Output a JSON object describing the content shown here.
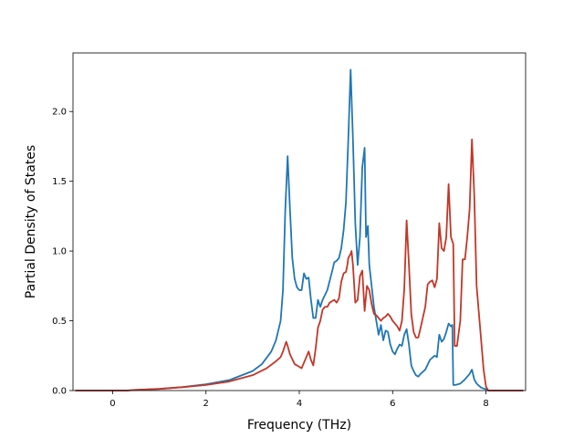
{
  "chart_data": {
    "type": "line",
    "xlabel": "Frequency (THz)",
    "ylabel": "Partial Density of States",
    "xlim": [
      -0.85,
      8.85
    ],
    "ylim": [
      0,
      2.42
    ],
    "x_ticks": [
      0,
      2,
      4,
      6,
      8
    ],
    "x_tick_labels": [
      "0",
      "2",
      "4",
      "6",
      "8"
    ],
    "y_ticks": [
      0.0,
      0.5,
      1.0,
      1.5,
      2.0
    ],
    "y_tick_labels": [
      "0.0",
      "0.5",
      "1.0",
      "1.5",
      "2.0"
    ],
    "grid": false,
    "series": [
      {
        "color": "#1f77b4",
        "points": [
          [
            -0.8,
            0
          ],
          [
            0,
            0
          ],
          [
            0.3,
            0
          ],
          [
            0.5,
            0.005
          ],
          [
            1.0,
            0.012
          ],
          [
            1.5,
            0.025
          ],
          [
            2.0,
            0.045
          ],
          [
            2.5,
            0.075
          ],
          [
            3.0,
            0.14
          ],
          [
            3.2,
            0.19
          ],
          [
            3.4,
            0.28
          ],
          [
            3.5,
            0.36
          ],
          [
            3.6,
            0.5
          ],
          [
            3.65,
            0.72
          ],
          [
            3.7,
            1.3
          ],
          [
            3.75,
            1.68
          ],
          [
            3.8,
            1.3
          ],
          [
            3.85,
            0.95
          ],
          [
            3.9,
            0.8
          ],
          [
            3.95,
            0.74
          ],
          [
            4.0,
            0.72
          ],
          [
            4.05,
            0.72
          ],
          [
            4.1,
            0.84
          ],
          [
            4.15,
            0.8
          ],
          [
            4.2,
            0.81
          ],
          [
            4.25,
            0.65
          ],
          [
            4.3,
            0.52
          ],
          [
            4.35,
            0.52
          ],
          [
            4.4,
            0.65
          ],
          [
            4.45,
            0.6
          ],
          [
            4.5,
            0.65
          ],
          [
            4.6,
            0.72
          ],
          [
            4.7,
            0.85
          ],
          [
            4.75,
            0.92
          ],
          [
            4.8,
            0.93
          ],
          [
            4.85,
            0.95
          ],
          [
            4.9,
            1.02
          ],
          [
            4.95,
            1.15
          ],
          [
            5.0,
            1.35
          ],
          [
            5.05,
            1.8
          ],
          [
            5.1,
            2.3
          ],
          [
            5.15,
            1.8
          ],
          [
            5.2,
            1.2
          ],
          [
            5.25,
            0.9
          ],
          [
            5.3,
            1.1
          ],
          [
            5.35,
            1.6
          ],
          [
            5.4,
            1.74
          ],
          [
            5.43,
            1.1
          ],
          [
            5.47,
            1.18
          ],
          [
            5.5,
            0.9
          ],
          [
            5.55,
            0.75
          ],
          [
            5.6,
            0.6
          ],
          [
            5.65,
            0.5
          ],
          [
            5.7,
            0.4
          ],
          [
            5.75,
            0.47
          ],
          [
            5.8,
            0.36
          ],
          [
            5.85,
            0.43
          ],
          [
            5.9,
            0.42
          ],
          [
            5.95,
            0.33
          ],
          [
            6.0,
            0.28
          ],
          [
            6.05,
            0.26
          ],
          [
            6.1,
            0.3
          ],
          [
            6.15,
            0.33
          ],
          [
            6.2,
            0.32
          ],
          [
            6.25,
            0.4
          ],
          [
            6.3,
            0.44
          ],
          [
            6.35,
            0.33
          ],
          [
            6.4,
            0.18
          ],
          [
            6.45,
            0.14
          ],
          [
            6.5,
            0.11
          ],
          [
            6.55,
            0.1
          ],
          [
            6.6,
            0.12
          ],
          [
            6.7,
            0.15
          ],
          [
            6.8,
            0.22
          ],
          [
            6.9,
            0.25
          ],
          [
            6.95,
            0.24
          ],
          [
            7.0,
            0.4
          ],
          [
            7.05,
            0.35
          ],
          [
            7.1,
            0.37
          ],
          [
            7.15,
            0.42
          ],
          [
            7.2,
            0.48
          ],
          [
            7.25,
            0.46
          ],
          [
            7.28,
            0.47
          ],
          [
            7.3,
            0.04
          ],
          [
            7.35,
            0.04
          ],
          [
            7.45,
            0.05
          ],
          [
            7.55,
            0.08
          ],
          [
            7.65,
            0.12
          ],
          [
            7.7,
            0.15
          ],
          [
            7.75,
            0.08
          ],
          [
            7.8,
            0.05
          ],
          [
            7.9,
            0.02
          ],
          [
            8.0,
            0.01
          ],
          [
            8.05,
            0
          ],
          [
            8.8,
            0
          ]
        ]
      },
      {
        "color": "#c23728",
        "points": [
          [
            -0.8,
            0
          ],
          [
            0,
            0
          ],
          [
            0.3,
            0
          ],
          [
            0.5,
            0.005
          ],
          [
            1.0,
            0.012
          ],
          [
            1.5,
            0.024
          ],
          [
            2.0,
            0.04
          ],
          [
            2.5,
            0.065
          ],
          [
            3.0,
            0.11
          ],
          [
            3.3,
            0.16
          ],
          [
            3.5,
            0.21
          ],
          [
            3.6,
            0.24
          ],
          [
            3.65,
            0.28
          ],
          [
            3.7,
            0.33
          ],
          [
            3.72,
            0.35
          ],
          [
            3.75,
            0.32
          ],
          [
            3.8,
            0.26
          ],
          [
            3.9,
            0.19
          ],
          [
            4.0,
            0.17
          ],
          [
            4.05,
            0.16
          ],
          [
            4.1,
            0.2
          ],
          [
            4.15,
            0.24
          ],
          [
            4.2,
            0.28
          ],
          [
            4.25,
            0.22
          ],
          [
            4.3,
            0.18
          ],
          [
            4.35,
            0.3
          ],
          [
            4.4,
            0.45
          ],
          [
            4.45,
            0.5
          ],
          [
            4.5,
            0.58
          ],
          [
            4.55,
            0.6
          ],
          [
            4.6,
            0.6
          ],
          [
            4.65,
            0.63
          ],
          [
            4.7,
            0.64
          ],
          [
            4.75,
            0.65
          ],
          [
            4.8,
            0.63
          ],
          [
            4.85,
            0.66
          ],
          [
            4.9,
            0.78
          ],
          [
            4.95,
            0.84
          ],
          [
            5.0,
            0.85
          ],
          [
            5.03,
            0.9
          ],
          [
            5.05,
            0.95
          ],
          [
            5.1,
            0.98
          ],
          [
            5.12,
            1.0
          ],
          [
            5.15,
            0.9
          ],
          [
            5.2,
            0.63
          ],
          [
            5.25,
            0.65
          ],
          [
            5.3,
            0.82
          ],
          [
            5.35,
            0.86
          ],
          [
            5.4,
            0.57
          ],
          [
            5.45,
            0.75
          ],
          [
            5.5,
            0.72
          ],
          [
            5.55,
            0.62
          ],
          [
            5.6,
            0.55
          ],
          [
            5.65,
            0.54
          ],
          [
            5.7,
            0.52
          ],
          [
            5.75,
            0.5
          ],
          [
            5.8,
            0.52
          ],
          [
            5.85,
            0.53
          ],
          [
            5.9,
            0.55
          ],
          [
            5.95,
            0.53
          ],
          [
            6.0,
            0.5
          ],
          [
            6.05,
            0.48
          ],
          [
            6.1,
            0.46
          ],
          [
            6.15,
            0.43
          ],
          [
            6.2,
            0.5
          ],
          [
            6.25,
            0.73
          ],
          [
            6.3,
            1.22
          ],
          [
            6.35,
            0.9
          ],
          [
            6.4,
            0.55
          ],
          [
            6.45,
            0.42
          ],
          [
            6.5,
            0.38
          ],
          [
            6.55,
            0.38
          ],
          [
            6.6,
            0.45
          ],
          [
            6.7,
            0.6
          ],
          [
            6.75,
            0.76
          ],
          [
            6.8,
            0.78
          ],
          [
            6.85,
            0.79
          ],
          [
            6.9,
            0.74
          ],
          [
            6.95,
            0.8
          ],
          [
            7.0,
            1.2
          ],
          [
            7.05,
            1.02
          ],
          [
            7.1,
            1.0
          ],
          [
            7.15,
            1.1
          ],
          [
            7.2,
            1.48
          ],
          [
            7.25,
            1.1
          ],
          [
            7.3,
            1.05
          ],
          [
            7.33,
            0.32
          ],
          [
            7.38,
            0.32
          ],
          [
            7.45,
            0.5
          ],
          [
            7.5,
            0.94
          ],
          [
            7.55,
            0.94
          ],
          [
            7.6,
            1.1
          ],
          [
            7.65,
            1.3
          ],
          [
            7.7,
            1.8
          ],
          [
            7.75,
            1.4
          ],
          [
            7.8,
            0.75
          ],
          [
            7.85,
            0.55
          ],
          [
            7.9,
            0.35
          ],
          [
            7.95,
            0.15
          ],
          [
            8.0,
            0.03
          ],
          [
            8.05,
            0
          ],
          [
            8.8,
            0
          ]
        ]
      }
    ]
  }
}
